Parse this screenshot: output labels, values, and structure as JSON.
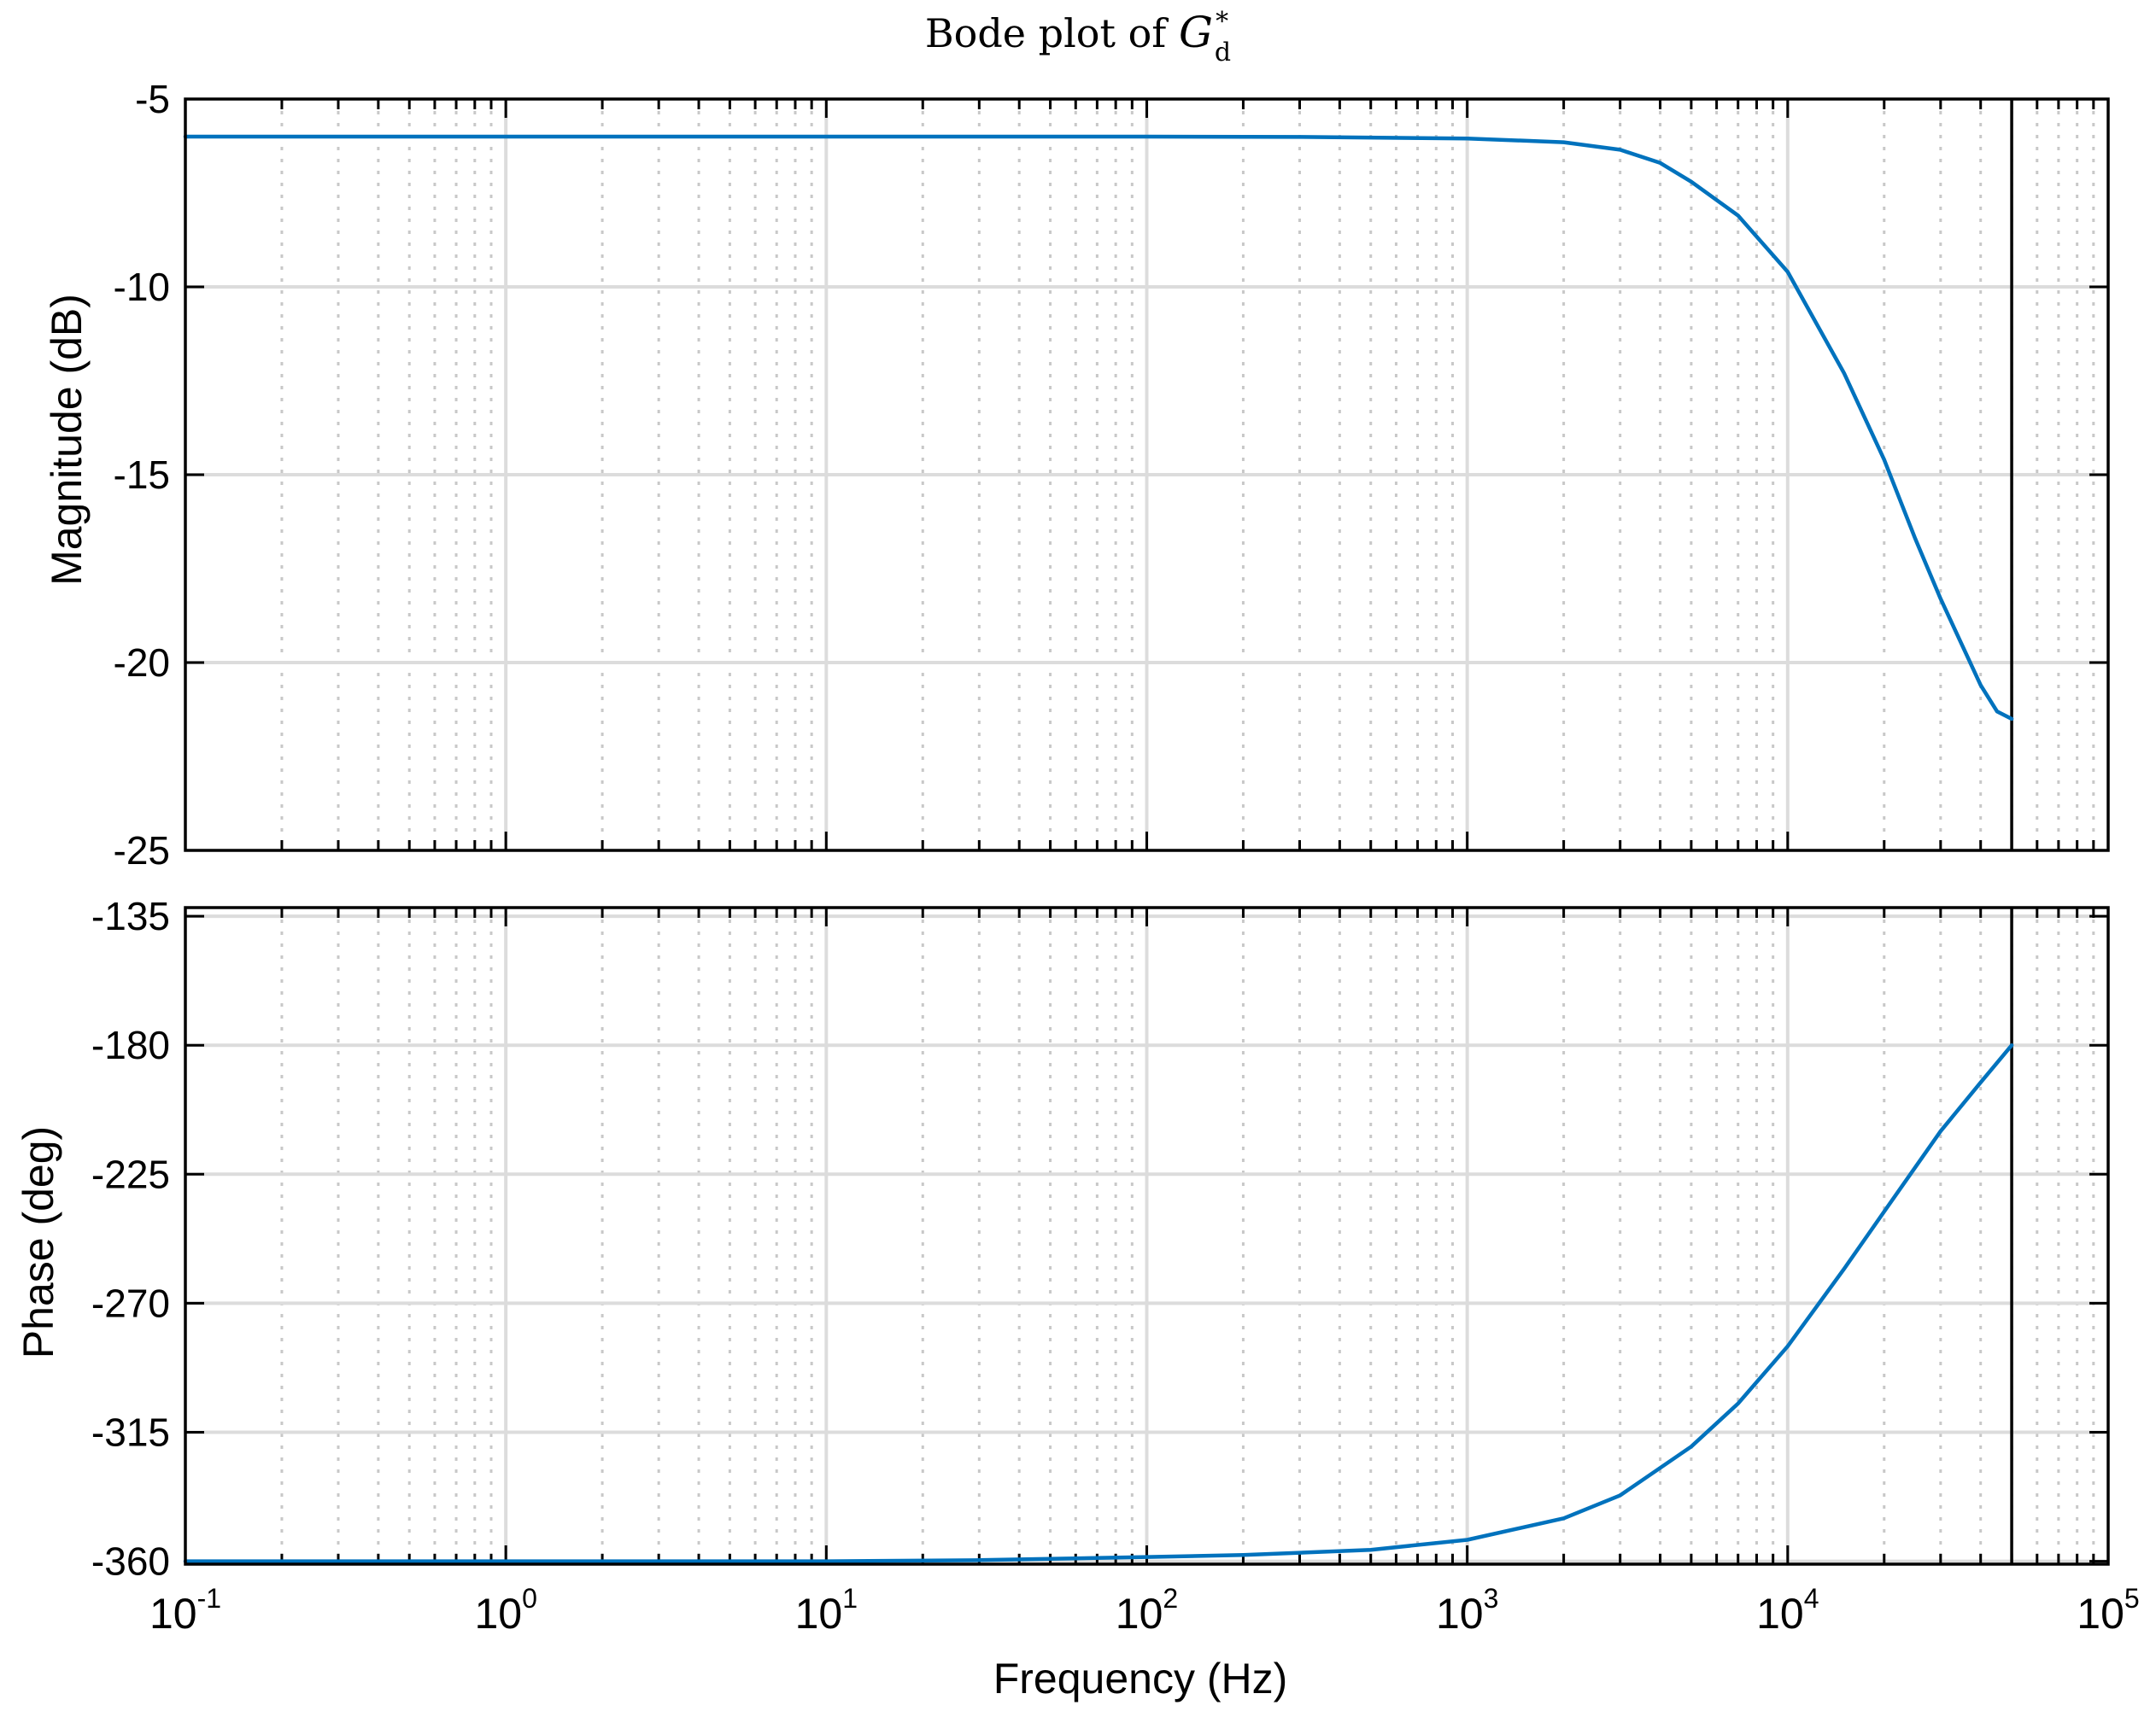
{
  "chart_data": {
    "type": "line",
    "title": {
      "text": "Bode plot of ",
      "symbol": "G",
      "subscript": "d",
      "superscript": "*"
    },
    "xlabel": "Frequency  (Hz)",
    "xscale": "log",
    "xlim": [
      0.1,
      100000
    ],
    "x_ticks": [
      {
        "base": "10",
        "exp": "-1"
      },
      {
        "base": "10",
        "exp": "0"
      },
      {
        "base": "10",
        "exp": "1"
      },
      {
        "base": "10",
        "exp": "2"
      },
      {
        "base": "10",
        "exp": "3"
      },
      {
        "base": "10",
        "exp": "4"
      },
      {
        "base": "10",
        "exp": "5"
      }
    ],
    "grid": true,
    "nyquist_line_x": 50000,
    "line_color": "#0072BD",
    "panels": [
      {
        "name": "magnitude",
        "ylabel": "Magnitude (dB)",
        "ylim": [
          -25,
          -5
        ],
        "yticks": [
          "-5",
          "-10",
          "-15",
          "-20",
          "-25"
        ],
        "series": [
          {
            "x": [
              0.1,
              1,
              10,
              100,
              300,
              1000,
              2000,
              3000,
              4000,
              5000,
              7000,
              10000,
              15000,
              20000,
              25000,
              30000,
              40000,
              45000,
              50000
            ],
            "y": [
              -6.0,
              -6.0,
              -6.0,
              -6.0,
              -6.01,
              -6.05,
              -6.15,
              -6.35,
              -6.7,
              -7.2,
              -8.1,
              -9.6,
              -12.3,
              -14.6,
              -16.7,
              -18.3,
              -20.6,
              -21.3,
              -21.5
            ]
          }
        ]
      },
      {
        "name": "phase",
        "ylabel": "Phase (deg)",
        "ylim": [
          -361,
          -132
        ],
        "yticks": [
          "-135",
          "-180",
          "-225",
          "-270",
          "-315",
          "-360"
        ],
        "series": [
          {
            "x": [
              0.1,
              1,
              10,
              30,
              100,
              200,
              500,
              1000,
              2000,
              3000,
              5000,
              7000,
              10000,
              15000,
              20000,
              30000,
              40000,
              50000
            ],
            "y": [
              -360,
              -360,
              -360,
              -359.6,
              -358.5,
              -357.8,
              -356,
              -352.5,
              -345,
              -337,
              -320,
              -305,
              -285,
              -258,
              -238,
              -210,
              -193,
              -180
            ]
          }
        ]
      }
    ]
  }
}
